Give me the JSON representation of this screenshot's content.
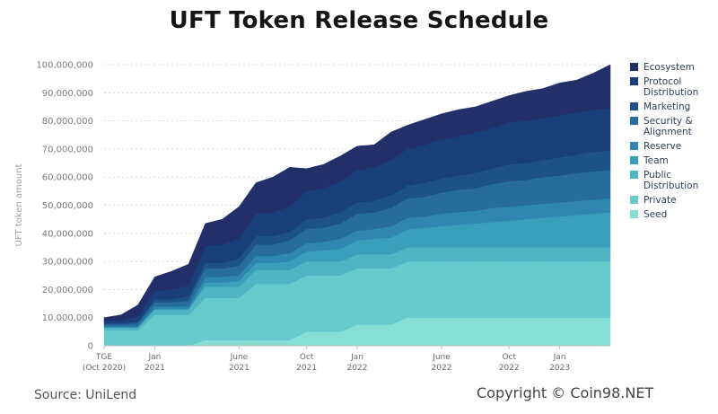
{
  "chart_data": {
    "type": "area",
    "stacked": true,
    "title": "UFT Token Release Schedule",
    "ylabel": "UFT token amount",
    "xlabel": "",
    "ylim": [
      0,
      100000000
    ],
    "yticks": [
      0,
      10000000,
      20000000,
      30000000,
      40000000,
      50000000,
      60000000,
      70000000,
      80000000,
      90000000,
      100000000
    ],
    "ytick_labels": [
      "0",
      "10,000,000",
      "20,000,000",
      "30,000,000",
      "40,000,000",
      "50,000,000",
      "60,000,000",
      "70,000,000",
      "80,000,000",
      "90,000,000",
      "100,000,000"
    ],
    "grid": "horizontal-dotted",
    "legend_position": "right",
    "x_ticks": [
      {
        "month": 0,
        "line1": "TGE",
        "line2": "(Oct 2020)"
      },
      {
        "month": 3,
        "line1": "Jan",
        "line2": "2021"
      },
      {
        "month": 8,
        "line1": "June",
        "line2": "2021"
      },
      {
        "month": 12,
        "line1": "Oct",
        "line2": "2021"
      },
      {
        "month": 15,
        "line1": "Jan",
        "line2": "2022"
      },
      {
        "month": 20,
        "line1": "June",
        "line2": "2022"
      },
      {
        "month": 24,
        "line1": "Oct",
        "line2": "2022"
      },
      {
        "month": 27,
        "line1": "Jan",
        "line2": "2023"
      }
    ],
    "x": [
      0,
      1,
      2,
      3,
      4,
      5,
      6,
      7,
      8,
      9,
      10,
      11,
      12,
      13,
      14,
      15,
      16,
      17,
      18,
      19,
      20,
      21,
      22,
      23,
      24,
      25,
      26,
      27,
      28,
      29,
      30
    ],
    "series": [
      {
        "name": "Seed",
        "color": "#86dfd5",
        "values": [
          0,
          0,
          0,
          0,
          0,
          0,
          2000000,
          2000000,
          2000000,
          2000000,
          2000000,
          2000000,
          5000000,
          5000000,
          5000000,
          7500000,
          7500000,
          7500000,
          10000000,
          10000000,
          10000000,
          10000000,
          10000000,
          10000000,
          10000000,
          10000000,
          10000000,
          10000000,
          10000000,
          10000000,
          10000000
        ]
      },
      {
        "name": "Private",
        "color": "#67cbcd",
        "values": [
          5500000,
          5500000,
          5500000,
          11000000,
          11000000,
          11000000,
          15000000,
          15000000,
          15000000,
          20000000,
          20000000,
          20000000,
          20000000,
          20000000,
          20000000,
          20000000,
          20000000,
          20000000,
          20000000,
          20000000,
          20000000,
          20000000,
          20000000,
          20000000,
          20000000,
          20000000,
          20000000,
          20000000,
          20000000,
          20000000,
          20000000
        ]
      },
      {
        "name": "Public Distribution",
        "color": "#4fb5c4",
        "values": [
          1000000,
          1000000,
          1000000,
          2000000,
          2000000,
          2000000,
          4000000,
          4000000,
          4000000,
          5000000,
          5000000,
          5000000,
          5000000,
          5000000,
          5000000,
          5000000,
          5000000,
          5000000,
          5000000,
          5000000,
          5000000,
          5000000,
          5000000,
          5000000,
          5000000,
          5000000,
          5000000,
          5000000,
          5000000,
          5000000,
          5000000
        ]
      },
      {
        "name": "Team",
        "color": "#3a9fba",
        "values": [
          0,
          0,
          0,
          0,
          0,
          0,
          1500000,
          1500000,
          2000000,
          2500000,
          2500000,
          3000000,
          3500000,
          4000000,
          4500000,
          5000000,
          5500000,
          6000000,
          6500000,
          7000000,
          7500000,
          8000000,
          8500000,
          9000000,
          9500000,
          10000000,
          10500000,
          11000000,
          11500000,
          12000000,
          12500000
        ]
      },
      {
        "name": "Reserve",
        "color": "#2f86ae",
        "values": [
          500000,
          500000,
          500000,
          1000000,
          1000000,
          1000000,
          2000000,
          2000000,
          2000000,
          2500000,
          2500000,
          3000000,
          3000000,
          3000000,
          3500000,
          3500000,
          3500000,
          4000000,
          4000000,
          4000000,
          4500000,
          4500000,
          4500000,
          5000000,
          5000000,
          5000000,
          5000000,
          5000000,
          5000000,
          5000000,
          5000000
        ]
      },
      {
        "name": "Security & Alignment",
        "color": "#266c9d",
        "values": [
          500000,
          500000,
          1000000,
          1500000,
          1500000,
          2000000,
          3000000,
          3000000,
          3500000,
          4000000,
          4000000,
          4500000,
          5000000,
          5000000,
          5500000,
          6000000,
          6000000,
          6500000,
          7000000,
          7000000,
          7500000,
          8000000,
          8000000,
          8500000,
          9000000,
          9000000,
          9500000,
          9500000,
          10000000,
          10000000,
          10000000
        ]
      },
      {
        "name": "Marketing",
        "color": "#1d5289",
        "values": [
          500000,
          500000,
          500000,
          1000000,
          1000000,
          1500000,
          2000000,
          2000000,
          2500000,
          3000000,
          3000000,
          3000000,
          3500000,
          3500000,
          4000000,
          4000000,
          4000000,
          4500000,
          4500000,
          5000000,
          5000000,
          5000000,
          5500000,
          5500000,
          6000000,
          6000000,
          6000000,
          6500000,
          6500000,
          7000000,
          7000000
        ]
      },
      {
        "name": "Protocol Distribution",
        "color": "#183f78",
        "values": [
          1000000,
          1000000,
          2000000,
          3000000,
          3500000,
          4000000,
          6000000,
          6500000,
          7000000,
          8000000,
          8500000,
          9000000,
          10000000,
          10500000,
          11000000,
          11500000,
          12000000,
          12500000,
          13000000,
          13500000,
          14000000,
          14000000,
          14500000,
          14500000,
          15000000,
          15000000,
          15000000,
          15000000,
          15000000,
          15000000,
          15000000
        ]
      },
      {
        "name": "Ecosystem",
        "color": "#222f68",
        "values": [
          1000000,
          2000000,
          4000000,
          5000000,
          6500000,
          7500000,
          8000000,
          9000000,
          11500000,
          11000000,
          12500000,
          14000000,
          8000000,
          8500000,
          9000000,
          8500000,
          8000000,
          10000000,
          8500000,
          9000000,
          9000000,
          9500000,
          9000000,
          9500000,
          9500000,
          10500000,
          10500000,
          11500000,
          11500000,
          13000000,
          15500000
        ]
      }
    ]
  },
  "footer": {
    "source": "Source: UniLend",
    "copyright": "Copyright © Coin98.NET"
  }
}
